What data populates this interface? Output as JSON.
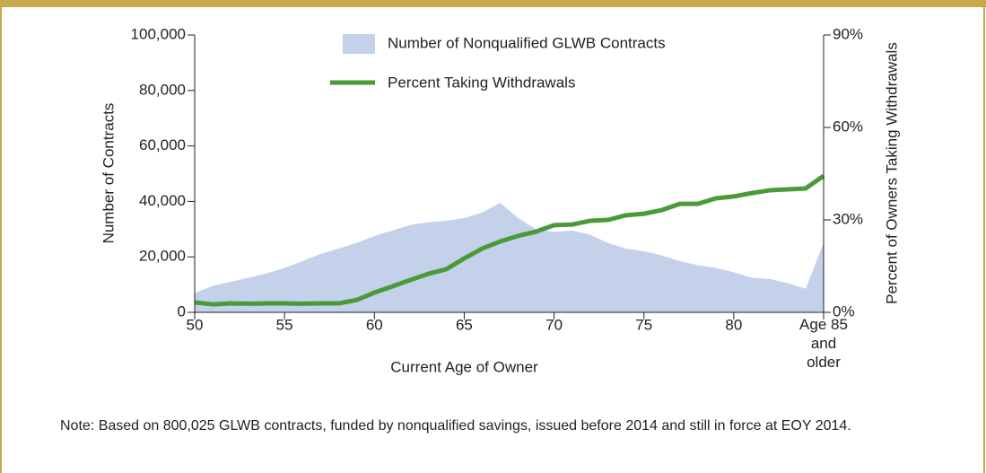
{
  "chart_data": {
    "type": "area_line",
    "x": [
      50,
      51,
      52,
      53,
      54,
      55,
      56,
      57,
      58,
      59,
      60,
      61,
      62,
      63,
      64,
      65,
      66,
      67,
      68,
      69,
      70,
      71,
      72,
      73,
      74,
      75,
      76,
      77,
      78,
      79,
      80,
      81,
      82,
      83,
      84,
      85
    ],
    "series": [
      {
        "name": "Number of Nonqualified GLWB Contracts",
        "color": "#c3d1ea",
        "values": [
          7000,
          9500,
          11000,
          12500,
          14000,
          16000,
          18500,
          21000,
          23000,
          25000,
          27500,
          29500,
          31500,
          32500,
          33000,
          34000,
          36000,
          39500,
          34000,
          30000,
          29000,
          29500,
          28000,
          25000,
          23000,
          22000,
          20500,
          18500,
          17000,
          16000,
          14500,
          12500,
          12000,
          10500,
          8500,
          25000
        ]
      },
      {
        "name": "Percent Taking Withdrawals",
        "color": "#4a9a3a",
        "axis": "y2",
        "values": [
          3.2,
          2.6,
          2.9,
          2.8,
          2.9,
          2.9,
          2.8,
          2.9,
          2.9,
          4,
          6.4,
          8.4,
          10.5,
          12.5,
          14,
          17.5,
          20.7,
          23,
          24.8,
          26.2,
          28.3,
          28.5,
          29.7,
          30,
          31.5,
          32,
          33.2,
          35.2,
          35.2,
          37,
          37.6,
          38.7,
          39.6,
          39.9,
          40.2,
          44.3
        ]
      }
    ],
    "xlim": [
      50,
      85
    ],
    "xticks": [
      50,
      55,
      60,
      65,
      70,
      75,
      80,
      {
        "value": 85,
        "label": "Age 85 and older"
      }
    ],
    "ylim": [
      0,
      100000
    ],
    "yticks": [
      0,
      {
        "value": 20000,
        "label": "20,000"
      },
      {
        "value": 40000,
        "label": "40,000"
      },
      {
        "value": 60000,
        "label": "60,000"
      },
      {
        "value": 80000,
        "label": "80,000"
      },
      {
        "value": 100000,
        "label": "100,000"
      }
    ],
    "y2lim": [
      0,
      90
    ],
    "y2ticks": [
      {
        "value": 0,
        "label": "0%"
      },
      {
        "value": 30,
        "label": "30%"
      },
      {
        "value": 60,
        "label": "60%"
      },
      {
        "value": 90,
        "label": "90%"
      }
    ],
    "xlabel": "Current Age of Owner",
    "ylabel": "Number of Contracts",
    "y2label": "Percent of Owners Taking Withdrawals",
    "note": "Note: Based on 800,025 GLWB contracts, funded by nonqualified savings, issued before 2014 and still in force at EOY 2014."
  }
}
